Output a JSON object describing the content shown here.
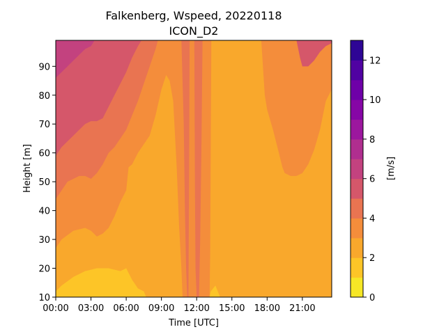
{
  "chart_data": {
    "type": "contourf",
    "title_line1": "Falkenberg, Wspeed, 20220118",
    "title_line2": "ICON_D2",
    "xlabel": "Time [UTC]",
    "ylabel": "Height [m]",
    "colorbar_label": "[m/s]",
    "xlim": [
      0,
      23.5
    ],
    "ylim": [
      10,
      99
    ],
    "x_ticks": [
      {
        "value": 0,
        "label": "00:00"
      },
      {
        "value": 3,
        "label": "03:00"
      },
      {
        "value": 6,
        "label": "06:00"
      },
      {
        "value": 9,
        "label": "09:00"
      },
      {
        "value": 12,
        "label": "12:00"
      },
      {
        "value": 15,
        "label": "15:00"
      },
      {
        "value": 18,
        "label": "18:00"
      },
      {
        "value": 21,
        "label": "21:00"
      }
    ],
    "y_ticks": [
      {
        "value": 10,
        "label": "10"
      },
      {
        "value": 20,
        "label": "20"
      },
      {
        "value": 30,
        "label": "30"
      },
      {
        "value": 40,
        "label": "40"
      },
      {
        "value": 50,
        "label": "50"
      },
      {
        "value": 60,
        "label": "60"
      },
      {
        "value": 70,
        "label": "70"
      },
      {
        "value": 80,
        "label": "80"
      },
      {
        "value": 90,
        "label": "90"
      }
    ],
    "colorbar": {
      "vmin": 0,
      "vmax": 13,
      "levels": [
        0,
        1,
        2,
        3,
        4,
        5,
        6,
        7,
        8,
        9,
        10,
        11,
        12,
        13
      ],
      "colors": [
        "#f6e726",
        "#fdc527",
        "#f9a82c",
        "#f48d3b",
        "#e97451",
        "#d5576a",
        "#c3427f",
        "#b02e8f",
        "#9c179e",
        "#8606a6",
        "#6e00a8",
        "#5002a2",
        "#2e0595"
      ],
      "tick_labels": [
        {
          "value": 0,
          "label": "0"
        },
        {
          "value": 2,
          "label": "2"
        },
        {
          "value": 4,
          "label": "4"
        },
        {
          "value": 6,
          "label": "6"
        },
        {
          "value": 8,
          "label": "8"
        },
        {
          "value": 10,
          "label": "10"
        },
        {
          "value": 12,
          "label": "12"
        }
      ]
    },
    "boundaries": [
      {
        "name": "b2",
        "points": [
          [
            0,
            12
          ],
          [
            0.5,
            14
          ],
          [
            1.5,
            17
          ],
          [
            2.5,
            19
          ],
          [
            3.5,
            20
          ],
          [
            4.5,
            20
          ],
          [
            5.5,
            19
          ],
          [
            6,
            20
          ],
          [
            6.5,
            16
          ],
          [
            7,
            13
          ],
          [
            7.5,
            12
          ],
          [
            7.7,
            10
          ],
          [
            10.8,
            10
          ],
          [
            10.9,
            12
          ],
          [
            11.2,
            30
          ],
          [
            11.35,
            75
          ],
          [
            11.45,
            98
          ],
          [
            11.5,
            99
          ],
          [
            11.7,
            99
          ],
          [
            11.75,
            75
          ],
          [
            11.9,
            30
          ],
          [
            12,
            15
          ],
          [
            12.1,
            10
          ],
          [
            13.1,
            10
          ],
          [
            13.2,
            12
          ],
          [
            13.6,
            14
          ],
          [
            13.8,
            12
          ],
          [
            14,
            10
          ],
          [
            23.5,
            10
          ]
        ]
      },
      {
        "name": "b3",
        "points": [
          [
            0,
            27
          ],
          [
            0.5,
            30
          ],
          [
            1.5,
            33
          ],
          [
            2.5,
            34
          ],
          [
            3,
            33
          ],
          [
            3.5,
            31
          ],
          [
            4,
            32
          ],
          [
            4.5,
            34
          ],
          [
            5,
            38
          ],
          [
            5.5,
            43
          ],
          [
            6,
            47
          ],
          [
            6.2,
            55
          ],
          [
            6.5,
            56
          ],
          [
            7,
            60
          ],
          [
            7.5,
            63
          ],
          [
            8,
            66
          ],
          [
            8.5,
            73
          ],
          [
            9,
            82
          ],
          [
            9.4,
            87
          ],
          [
            9.7,
            85
          ],
          [
            10,
            78
          ],
          [
            10.3,
            55
          ],
          [
            10.5,
            35
          ],
          [
            10.7,
            20
          ],
          [
            10.8,
            10
          ],
          [
            13.1,
            10
          ],
          [
            13.15,
            25
          ],
          [
            13.2,
            60
          ],
          [
            13.25,
            99
          ],
          [
            17.5,
            99
          ],
          [
            17.8,
            80
          ],
          [
            18,
            75
          ],
          [
            18.5,
            68
          ],
          [
            19,
            60
          ],
          [
            19.3,
            55
          ],
          [
            19.5,
            53
          ],
          [
            20,
            52
          ],
          [
            20.5,
            52
          ],
          [
            21,
            53
          ],
          [
            21.5,
            56
          ],
          [
            22,
            61
          ],
          [
            22.5,
            68
          ],
          [
            23,
            78
          ],
          [
            23.5,
            82
          ]
        ]
      },
      {
        "name": "b4",
        "points": [
          [
            0,
            44
          ],
          [
            0.5,
            47
          ],
          [
            1,
            50
          ],
          [
            1.5,
            51
          ],
          [
            2,
            52
          ],
          [
            2.5,
            52
          ],
          [
            3,
            51
          ],
          [
            3.5,
            53
          ],
          [
            4,
            56
          ],
          [
            4.5,
            60
          ],
          [
            5,
            62
          ],
          [
            5.5,
            65
          ],
          [
            6,
            68
          ],
          [
            6.5,
            73
          ],
          [
            7,
            78
          ],
          [
            7.5,
            84
          ],
          [
            8,
            90
          ],
          [
            8.5,
            96
          ],
          [
            8.7,
            99
          ],
          [
            10.7,
            99
          ],
          [
            10.9,
            70
          ],
          [
            11,
            40
          ],
          [
            11.1,
            20
          ],
          [
            11.2,
            10
          ],
          [
            11.3,
            10
          ],
          [
            11.35,
            50
          ],
          [
            11.4,
            99
          ],
          [
            11.8,
            99
          ],
          [
            11.85,
            50
          ],
          [
            11.9,
            20
          ],
          [
            12,
            10
          ],
          [
            12.2,
            10
          ],
          [
            12.3,
            30
          ],
          [
            12.4,
            60
          ],
          [
            12.5,
            99
          ],
          [
            23.5,
            99
          ]
        ]
      },
      {
        "name": "b5",
        "points": [
          [
            0,
            59
          ],
          [
            0.5,
            62
          ],
          [
            1,
            64
          ],
          [
            1.5,
            66
          ],
          [
            2,
            68
          ],
          [
            2.5,
            70
          ],
          [
            3,
            71
          ],
          [
            3.5,
            71
          ],
          [
            4,
            72
          ],
          [
            4.5,
            76
          ],
          [
            5,
            80
          ],
          [
            5.5,
            84
          ],
          [
            6,
            88
          ],
          [
            6.5,
            93
          ],
          [
            7,
            97
          ],
          [
            7.3,
            99
          ],
          [
            20.5,
            99
          ],
          [
            20.8,
            93
          ],
          [
            21,
            90
          ],
          [
            21.5,
            90
          ],
          [
            22,
            92
          ],
          [
            22.5,
            95
          ],
          [
            23,
            97
          ],
          [
            23.5,
            98
          ]
        ]
      },
      {
        "name": "b6",
        "points": [
          [
            0,
            86
          ],
          [
            0.5,
            88
          ],
          [
            1,
            90
          ],
          [
            1.5,
            92
          ],
          [
            2,
            94
          ],
          [
            2.5,
            96
          ],
          [
            3,
            97
          ],
          [
            3.3,
            99
          ],
          [
            23.5,
            99
          ]
        ]
      }
    ]
  }
}
